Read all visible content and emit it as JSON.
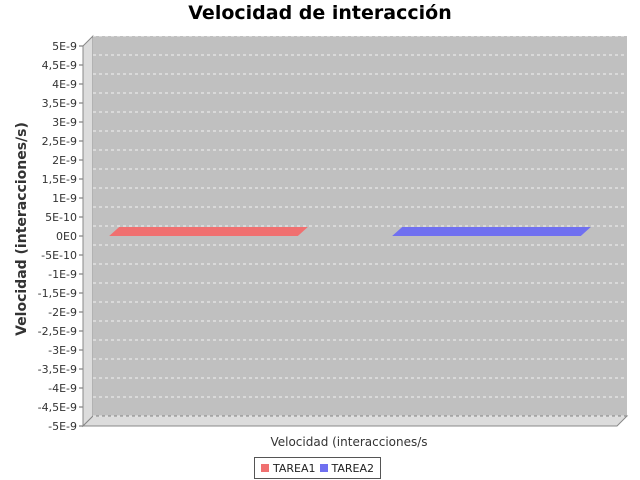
{
  "chart_data": {
    "type": "bar",
    "title": "Velocidad de interacción",
    "xlabel": "Velocidad (interacciones/s",
    "ylabel": "Velocidad (interacciones/s)",
    "ylim": [
      -5e-09,
      5e-09
    ],
    "ytick_values": [
      5e-09,
      4.5e-09,
      4e-09,
      3.5e-09,
      3e-09,
      2.5e-09,
      2e-09,
      1.5e-09,
      1e-09,
      5e-10,
      0,
      -5e-10,
      -1e-09,
      -1.5e-09,
      -2e-09,
      -2.5e-09,
      -3e-09,
      -3.5e-09,
      -4e-09,
      -4.5e-09,
      -5e-09
    ],
    "ytick_labels": [
      "5E-9",
      "4,5E-9",
      "4E-9",
      "3,5E-9",
      "3E-9",
      "2,5E-9",
      "2E-9",
      "1,5E-9",
      "1E-9",
      "5E-10",
      "0E0",
      "-5E-10",
      "-1E-9",
      "-1,5E-9",
      "-2E-9",
      "-2,5E-9",
      "-3E-9",
      "-3,5E-9",
      "-4E-9",
      "-4,5E-9",
      "-5E-9"
    ],
    "categories": [
      "Velocidad (interacciones/s"
    ],
    "series": [
      {
        "name": "TAREA1",
        "values": [
          0
        ],
        "color": "#f07070"
      },
      {
        "name": "TAREA2",
        "values": [
          0
        ],
        "color": "#7070f0"
      }
    ],
    "grid": true,
    "legend_position": "bottom",
    "plot_background": "#c0c0c0",
    "style": "3d"
  }
}
